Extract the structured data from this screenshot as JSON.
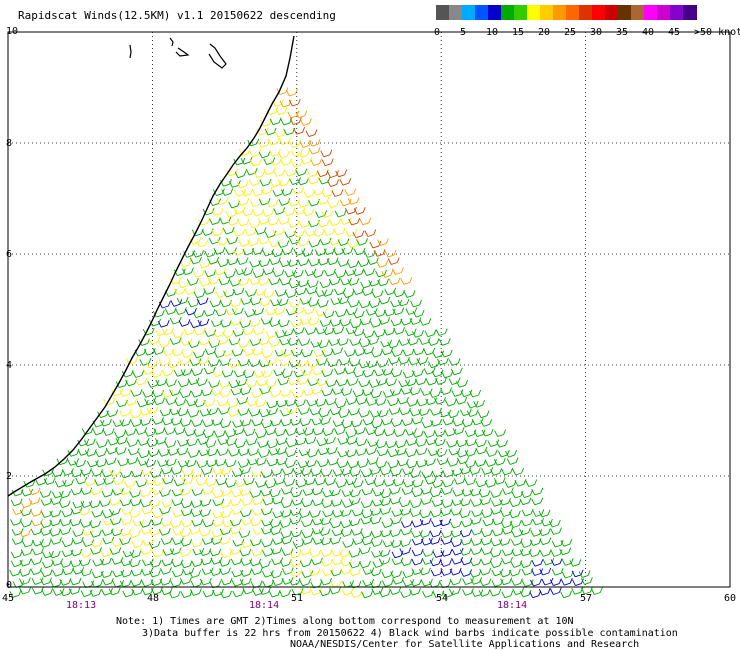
{
  "title": "Rapidscat Winds(12.5KM) v1.1 20150622 descending",
  "legend": {
    "colors": [
      "#555555",
      "#888888",
      "#00aaff",
      "#0055ff",
      "#0000cc",
      "#00aa00",
      "#33cc00",
      "#ffff00",
      "#ffcc00",
      "#ff9900",
      "#ff6600",
      "#dd3300",
      "#ff0000",
      "#cc0000",
      "#663300",
      "#aa6633",
      "#ff00ff",
      "#cc00cc",
      "#8800cc",
      "#440088"
    ],
    "labels": [
      "0",
      "5",
      "10",
      "15",
      "20",
      "25",
      "30",
      "35",
      "40",
      "45",
      ">50 knots"
    ]
  },
  "axes": {
    "lat_labels": [
      "10",
      "8",
      "6",
      "4",
      "2",
      "0"
    ],
    "lon_labels": [
      "45",
      "48",
      "51",
      "54",
      "57",
      "60"
    ]
  },
  "times": [
    "18:13",
    "18:14",
    "18:14"
  ],
  "notes": [
    "Note: 1) Times are GMT 2)Times along bottom correspond to measurement at 10N",
    "3)Data buffer is 22 hrs from 20150622 4) Black wind barbs indicate possible contamination",
    "NOAA/NESDIS/Center for Satellite Applications and Research"
  ],
  "colors": {
    "calm": "#0000cc",
    "light": "#00aa00",
    "moderate": "#ffee00",
    "fresh": "#ff9900",
    "strong": "#cc4400",
    "coast": "#000000",
    "grid": "#000000"
  }
}
